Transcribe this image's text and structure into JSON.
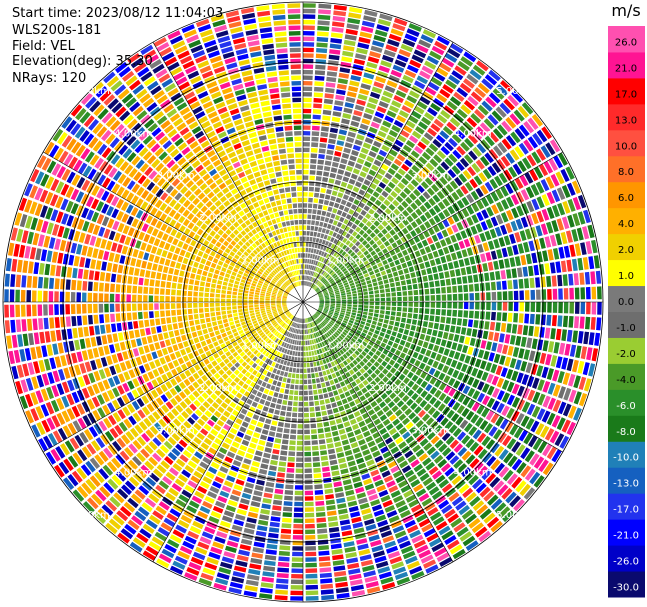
{
  "info": {
    "start_time": "Start time: 2023/08/12 11:04:03",
    "instrument": "WLS200s-181",
    "field": "Field: VEL",
    "elevation": "Elevation(deg): 35.30",
    "nrays": "NRays: 120"
  },
  "chart_data": {
    "type": "heatmap",
    "subtype": "polar-ppi",
    "field": "VEL",
    "unit": "m/s",
    "nrays": 120,
    "elevation_deg": 35.3,
    "range_ring_labels_km": [
      "1.00km",
      "2.00km",
      "3.00km",
      "4.00km",
      "5.00km"
    ],
    "colorbar": {
      "unit": "m/s",
      "ticks": [
        "26.0",
        "21.0",
        "17.0",
        "13.0",
        "10.0",
        "8.0",
        "6.0",
        "4.0",
        "2.0",
        "1.0",
        "0.0",
        "-1.0",
        "-2.0",
        "-4.0",
        "-6.0",
        "-8.0",
        "-10.0",
        "-13.0",
        "-17.0",
        "-21.0",
        "-26.0",
        "-30.0"
      ],
      "colors": [
        "#0a0a6e",
        "#0000c8",
        "#0000ff",
        "#2233ee",
        "#1560c0",
        "#2080b8",
        "#1a7a1a",
        "#2a8f2a",
        "#4a9a28",
        "#9acd32",
        "#6e6e6e",
        "#7a7a7a",
        "#ffff00",
        "#f0d000",
        "#ffb000",
        "#ff9600",
        "#ff7028",
        "#ff5040",
        "#ff2a2a",
        "#ff0000",
        "#ff1493",
        "#ff50b0"
      ]
    },
    "velocity_pattern": "approaching (positive, yellow/orange) toward west-north-west, receding (negative, green) toward east-south-east; noisy beyond ~3 km"
  }
}
